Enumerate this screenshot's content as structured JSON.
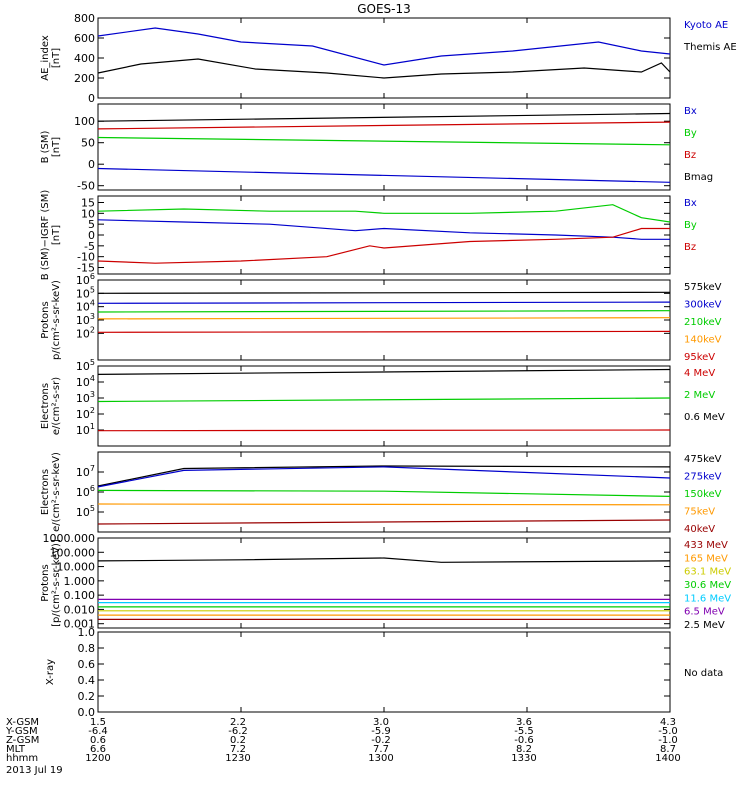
{
  "title": "GOES-13",
  "colors": {
    "black": "#000000",
    "blue": "#0000cc",
    "red": "#cc0000",
    "green": "#00cc00",
    "orange": "#ff9900",
    "darkred": "#990000",
    "teal": "#00ccff",
    "purple": "#8000b0",
    "brown": "#993300"
  },
  "chart_data": [
    {
      "type": "line",
      "panel": "ae",
      "ylabel": [
        "AE_index",
        "[nT]"
      ],
      "ylim": [
        0,
        800
      ],
      "yticks": [
        "0",
        "200",
        "400",
        "600",
        "800"
      ],
      "legend": [
        "Kyoto AE",
        "Themis AE"
      ],
      "series": [
        {
          "name": "Kyoto AE",
          "color": "#0000cc",
          "x": [
            12.0,
            12.2,
            12.35,
            12.5,
            12.75,
            13.0,
            13.2,
            13.45,
            13.75,
            13.9,
            14.0
          ],
          "y": [
            620,
            700,
            640,
            560,
            520,
            330,
            420,
            470,
            560,
            470,
            440
          ]
        },
        {
          "name": "Themis AE",
          "color": "#000000",
          "x": [
            12.0,
            12.15,
            12.35,
            12.55,
            12.8,
            13.0,
            13.2,
            13.45,
            13.7,
            13.9,
            13.97,
            14.0
          ],
          "y": [
            250,
            340,
            390,
            290,
            250,
            200,
            240,
            260,
            300,
            260,
            350,
            260
          ]
        }
      ]
    },
    {
      "type": "line",
      "panel": "bsm",
      "ylabel": [
        "B (SM)",
        "[nT]"
      ],
      "ylim": [
        -60,
        140
      ],
      "yticks": [
        "-50",
        "0",
        "50",
        "100"
      ],
      "legend": [
        "Bx",
        "By",
        "Bz",
        "Bmag"
      ],
      "series": [
        {
          "name": "Bx",
          "color": "#0000cc",
          "x": [
            12.0,
            14.0
          ],
          "y": [
            -10,
            -42
          ]
        },
        {
          "name": "By",
          "color": "#00cc00",
          "x": [
            12.0,
            14.0
          ],
          "y": [
            62,
            45
          ]
        },
        {
          "name": "Bz",
          "color": "#cc0000",
          "x": [
            12.0,
            14.0
          ],
          "y": [
            82,
            98
          ]
        },
        {
          "name": "Bmag",
          "color": "#000000",
          "x": [
            12.0,
            14.0
          ],
          "y": [
            100,
            118
          ]
        }
      ]
    },
    {
      "type": "line",
      "panel": "bdiff",
      "ylabel": [
        "B (SM)−IGRF (SM)",
        "[nT]"
      ],
      "ylim": [
        -18,
        18
      ],
      "yticks": [
        "-15",
        "-10",
        "-5",
        "0",
        "5",
        "10",
        "15"
      ],
      "legend": [
        "Bx",
        "By",
        "Bz"
      ],
      "series": [
        {
          "name": "Bx",
          "color": "#0000cc",
          "x": [
            12.0,
            12.3,
            12.6,
            12.9,
            13.0,
            13.3,
            13.6,
            13.8,
            13.9,
            14.0
          ],
          "y": [
            7,
            6,
            5,
            2,
            3,
            1,
            0,
            -1,
            -2,
            -2
          ]
        },
        {
          "name": "By",
          "color": "#00cc00",
          "x": [
            12.0,
            12.3,
            12.6,
            12.9,
            13.0,
            13.3,
            13.6,
            13.8,
            13.9,
            14.0
          ],
          "y": [
            11,
            12,
            11,
            11,
            10,
            10,
            11,
            14,
            8,
            6
          ]
        },
        {
          "name": "Bz",
          "color": "#cc0000",
          "x": [
            12.0,
            12.2,
            12.5,
            12.8,
            12.95,
            13.0,
            13.3,
            13.6,
            13.8,
            13.9,
            14.0
          ],
          "y": [
            -12,
            -13,
            -12,
            -10,
            -5,
            -6,
            -3,
            -2,
            -1,
            3,
            3
          ]
        }
      ]
    },
    {
      "type": "line",
      "panel": "protons",
      "ylabel": [
        "Protons",
        "p/(cm²-s-sr-keV)"
      ],
      "ylog": true,
      "ylim": [
        1,
        1000000
      ],
      "yticks": [
        "10^2",
        "10^3",
        "10^4",
        "10^5",
        "10^6"
      ],
      "legend": [
        "575keV",
        "300keV",
        "210keV",
        "140keV",
        "95keV"
      ],
      "series": [
        {
          "name": "575keV",
          "color": "#000000",
          "x": [
            12.0,
            14.0
          ],
          "y": [
            100000,
            120000
          ]
        },
        {
          "name": "300keV",
          "color": "#0000cc",
          "x": [
            12.0,
            14.0
          ],
          "y": [
            18000,
            22000
          ]
        },
        {
          "name": "210keV",
          "color": "#00cc00",
          "x": [
            12.0,
            14.0
          ],
          "y": [
            4000,
            5000
          ]
        },
        {
          "name": "140keV",
          "color": "#ff9900",
          "x": [
            12.0,
            14.0
          ],
          "y": [
            1200,
            1500
          ]
        },
        {
          "name": "95keV",
          "color": "#cc0000",
          "x": [
            12.0,
            14.0
          ],
          "y": [
            120,
            140
          ]
        }
      ]
    },
    {
      "type": "line",
      "panel": "electrons_mev",
      "ylabel": [
        "Electrons",
        "e/(cm²-s-sr)"
      ],
      "ylog": true,
      "ylim": [
        1,
        100000
      ],
      "yticks": [
        "10^1",
        "10^2",
        "10^3",
        "10^4",
        "10^5"
      ],
      "legend": [
        "4 MeV",
        "2 MeV",
        "0.6 MeV"
      ],
      "series": [
        {
          "name": "4 MeV",
          "color": "#cc0000",
          "x": [
            12.0,
            14.0
          ],
          "y": [
            9,
            10
          ]
        },
        {
          "name": "2 MeV",
          "color": "#00cc00",
          "x": [
            12.0,
            14.0
          ],
          "y": [
            600,
            1000
          ]
        },
        {
          "name": "0.6 MeV",
          "color": "#000000",
          "x": [
            12.0,
            14.0
          ],
          "y": [
            30000,
            60000
          ]
        }
      ]
    },
    {
      "type": "line",
      "panel": "electrons_kev",
      "ylabel": [
        "Electrons",
        "e/(cm²-s-sr-keV)"
      ],
      "ylog": true,
      "ylim": [
        10000,
        100000000
      ],
      "yticks": [
        "10^5",
        "10^6",
        "10^7"
      ],
      "legend": [
        "475keV",
        "275keV",
        "150keV",
        "75keV",
        "40keV"
      ],
      "series": [
        {
          "name": "475keV",
          "color": "#000000",
          "x": [
            12.0,
            12.3,
            13.0,
            14.0
          ],
          "y": [
            2000000,
            15000000,
            20000000,
            18000000
          ]
        },
        {
          "name": "275keV",
          "color": "#0000cc",
          "x": [
            12.0,
            12.3,
            13.0,
            14.0
          ],
          "y": [
            1800000,
            12000000,
            18000000,
            5000000
          ]
        },
        {
          "name": "150keV",
          "color": "#00cc00",
          "x": [
            12.0,
            13.0,
            14.0
          ],
          "y": [
            1200000,
            1100000,
            600000
          ]
        },
        {
          "name": "75keV",
          "color": "#ff9900",
          "x": [
            12.0,
            14.0
          ],
          "y": [
            250000,
            230000
          ]
        },
        {
          "name": "40keV",
          "color": "#990000",
          "x": [
            12.0,
            14.0
          ],
          "y": [
            25000,
            40000
          ]
        }
      ]
    },
    {
      "type": "line",
      "panel": "protons_mev",
      "ylabel": [
        "Protons",
        "[p/(cm²-s-sr-keV)]"
      ],
      "ylog": true,
      "ylim": [
        0.0005,
        1000
      ],
      "yticks": [
        "0.001",
        "0.010",
        "0.100",
        "1.000",
        "10.000",
        "100.000",
        "1000.000"
      ],
      "legend": [
        "433 MeV",
        "165 MeV",
        "63.1 MeV",
        "30.6 MeV",
        "11.6 MeV",
        "6.5 MeV",
        "2.5 MeV"
      ],
      "series": [
        {
          "name": "433 MeV",
          "color": "#990000",
          "x": [
            12.0,
            14.0
          ],
          "y": [
            0.002,
            0.002
          ]
        },
        {
          "name": "165 MeV",
          "color": "#ff9900",
          "x": [
            12.0,
            14.0
          ],
          "y": [
            0.004,
            0.004
          ]
        },
        {
          "name": "63.1 MeV",
          "color": "#cccc00",
          "x": [
            12.0,
            14.0
          ],
          "y": [
            0.008,
            0.008
          ]
        },
        {
          "name": "30.6 MeV",
          "color": "#00cc00",
          "x": [
            12.0,
            14.0
          ],
          "y": [
            0.015,
            0.015
          ]
        },
        {
          "name": "11.6 MeV",
          "color": "#00ccff",
          "x": [
            12.0,
            14.0
          ],
          "y": [
            0.03,
            0.03
          ]
        },
        {
          "name": "6.5 MeV",
          "color": "#8000b0",
          "x": [
            12.0,
            14.0
          ],
          "y": [
            0.05,
            0.05
          ]
        },
        {
          "name": "2.5 MeV",
          "color": "#000000",
          "x": [
            12.0,
            12.5,
            13.0,
            13.2,
            14.0
          ],
          "y": [
            25,
            30,
            40,
            20,
            25
          ]
        }
      ]
    },
    {
      "type": "line",
      "panel": "xray",
      "ylabel": [
        "X-ray"
      ],
      "ylim": [
        0,
        1
      ],
      "yticks": [
        "0.0",
        "0.2",
        "0.4",
        "0.6",
        "0.8",
        "1.0"
      ],
      "legend": [
        "No data"
      ],
      "series": []
    }
  ],
  "xaxis": {
    "xlim": [
      12.0,
      14.0
    ],
    "rows": [
      {
        "label": "X-GSM",
        "values": [
          "1.5",
          "2.2",
          "3.0",
          "3.6",
          "4.3"
        ]
      },
      {
        "label": "Y-GSM",
        "values": [
          "-6.4",
          "-6.2",
          "-5.9",
          "-5.5",
          "-5.0"
        ]
      },
      {
        "label": "Z-GSM",
        "values": [
          "0.6",
          "0.2",
          "-0.2",
          "-0.6",
          "-1.0"
        ]
      },
      {
        "label": "MLT",
        "values": [
          "6.6",
          "7.2",
          "7.7",
          "8.2",
          "8.7"
        ]
      },
      {
        "label": "hhmm",
        "values": [
          "1200",
          "1230",
          "1300",
          "1330",
          "1400"
        ]
      }
    ],
    "date": "2013 Jul 19"
  }
}
